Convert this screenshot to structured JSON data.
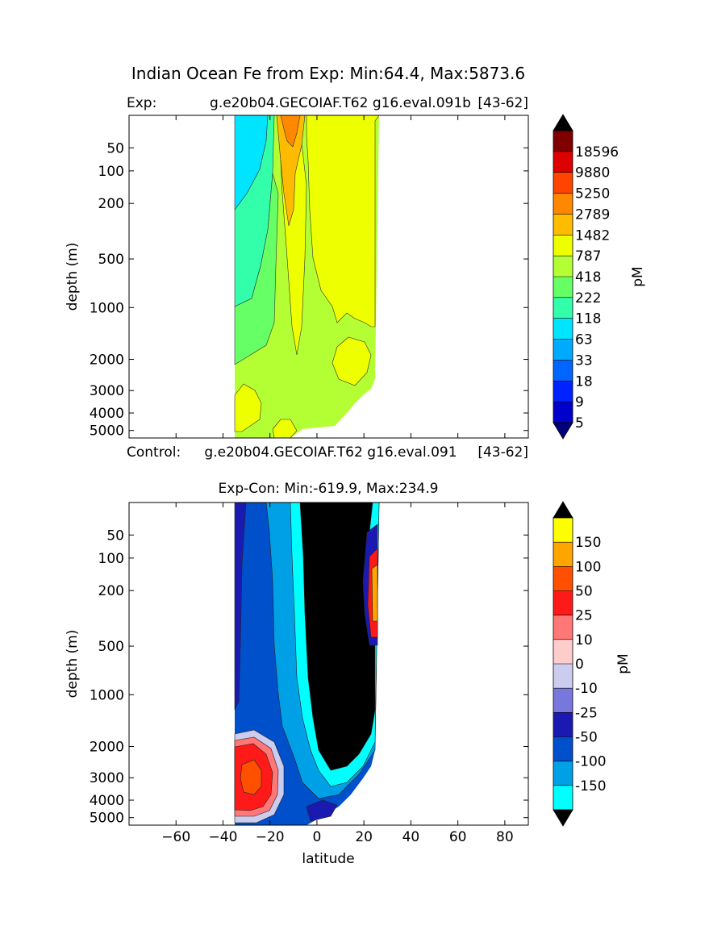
{
  "figure": {
    "suptitle": "Indian Ocean Fe from Exp: Min:64.4, Max:5873.6"
  },
  "chart_data": [
    {
      "type": "heatmap",
      "title_left": "Exp:",
      "title_center": "g.e20b04.GECOIAF.T62 g16.eval.091b",
      "title_right": "[43-62]",
      "ylabel": "depth (m)",
      "y_ticks": [
        "50",
        "100",
        "200",
        "500",
        "1000",
        "2000",
        "3000",
        "4000",
        "5000"
      ],
      "y_tick_values": [
        50,
        100,
        200,
        500,
        1000,
        2000,
        3000,
        4000,
        5000
      ],
      "x_tick_values": [
        -60,
        -40,
        -20,
        0,
        20,
        40,
        60,
        80
      ],
      "xlim": [
        -80,
        90
      ],
      "ylim": [
        5500,
        0
      ],
      "data_lat_range": [
        -34,
        26
      ],
      "colorbar": {
        "label": "pM",
        "levels": [
          "18596",
          "9880",
          "5250",
          "2789",
          "1482",
          "787",
          "418",
          "222",
          "118",
          "63",
          "33",
          "18",
          "9",
          "5"
        ],
        "colors": [
          "#000000",
          "#800000",
          "#dd0000",
          "#ff4400",
          "#ff8800",
          "#ffbb00",
          "#eeff00",
          "#b3ff33",
          "#66ff66",
          "#33ffaa",
          "#00e5ff",
          "#00aaff",
          "#0066ff",
          "#0022ff",
          "#0000cc",
          "#00007a"
        ]
      }
    },
    {
      "type": "heatmap",
      "title_left": "Control:",
      "title_center": "g.e20b04.GECOIAF.T62 g16.eval.091",
      "title_right": "[43-62]",
      "subtitle": "Exp-Con: Min:-619.9, Max:234.9",
      "ylabel": "depth (m)",
      "xlabel": "latitude",
      "x_ticks": [
        "−60",
        "−40",
        "−20",
        "0",
        "20",
        "40",
        "60",
        "80"
      ],
      "x_tick_values": [
        -60,
        -40,
        -20,
        0,
        20,
        40,
        60,
        80
      ],
      "y_ticks": [
        "50",
        "100",
        "200",
        "500",
        "1000",
        "2000",
        "3000",
        "4000",
        "5000"
      ],
      "y_tick_values": [
        50,
        100,
        200,
        500,
        1000,
        2000,
        3000,
        4000,
        5000
      ],
      "xlim": [
        -80,
        90
      ],
      "ylim": [
        5500,
        0
      ],
      "data_lat_range": [
        -34,
        26
      ],
      "colorbar": {
        "label": "pM",
        "levels": [
          "150",
          "100",
          "50",
          "25",
          "10",
          "0",
          "-10",
          "-25",
          "-50",
          "-100",
          "-150"
        ],
        "colors": [
          "#000000",
          "#ffff00",
          "#ffa500",
          "#ff5000",
          "#ff1a1a",
          "#ff7777",
          "#ffcccc",
          "#ccccee",
          "#7777dd",
          "#1a1ab3",
          "#0050cc",
          "#00a0e6",
          "#00ffff",
          "#000000"
        ]
      }
    }
  ]
}
